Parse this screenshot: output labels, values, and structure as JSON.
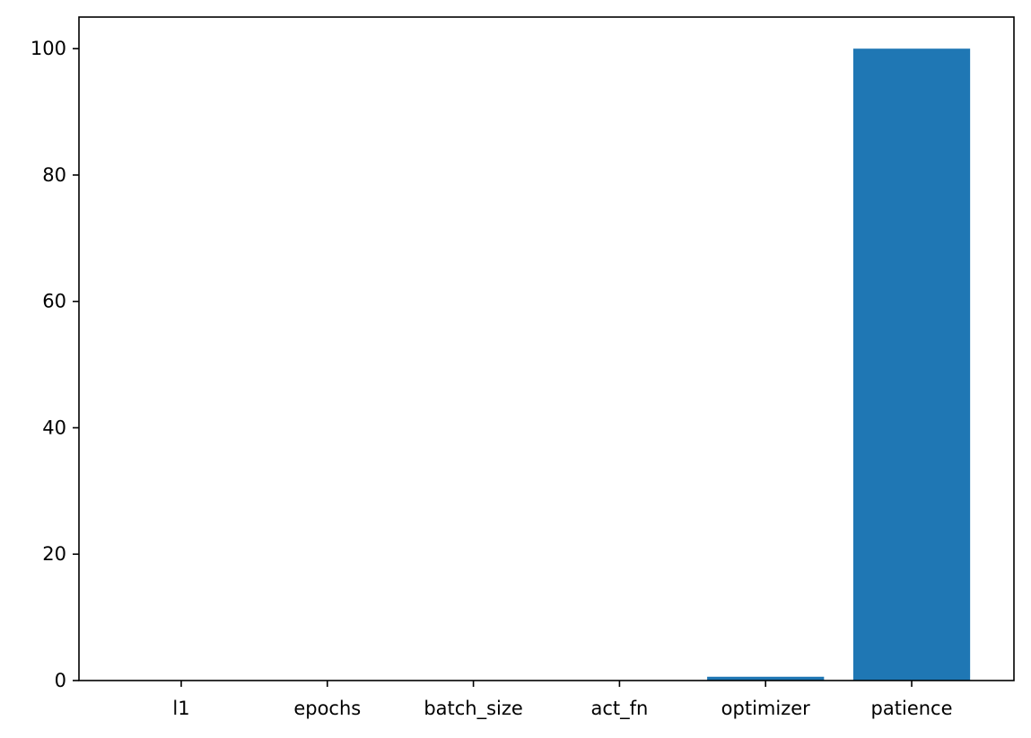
{
  "chart_data": {
    "type": "bar",
    "title": "",
    "xlabel": "",
    "ylabel": "",
    "categories": [
      "l1",
      "epochs",
      "batch_size",
      "act_fn",
      "optimizer",
      "patience"
    ],
    "values": [
      0.05,
      0.05,
      0.05,
      0.05,
      0.6,
      100
    ],
    "ylim": [
      0,
      105
    ],
    "yticks": [
      0,
      20,
      40,
      60,
      80,
      100
    ],
    "ytick_labels": [
      "0",
      "20",
      "40",
      "60",
      "80",
      "100"
    ],
    "grid": false,
    "bar_color": "#1f77b4"
  }
}
